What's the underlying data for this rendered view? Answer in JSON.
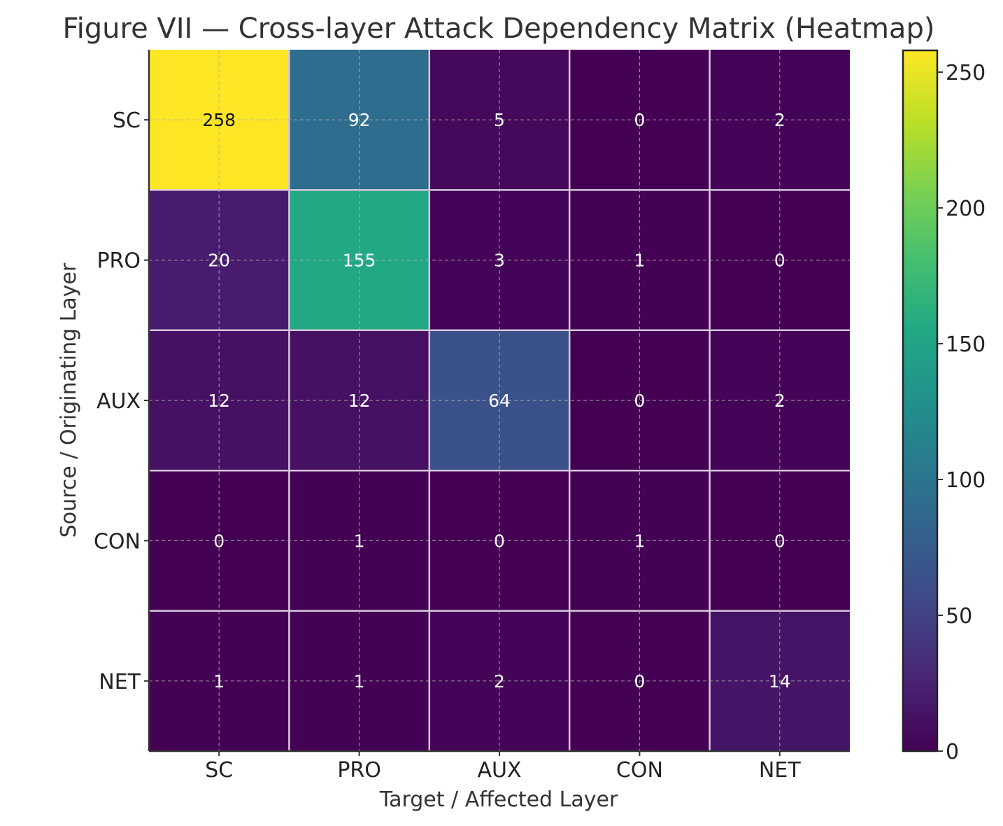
{
  "chart_data": {
    "type": "heatmap",
    "title": "Figure VII — Cross-layer Attack Dependency Matrix (Heatmap)",
    "xlabel": "Target / Affected Layer",
    "ylabel": "Source / Originating Layer",
    "x_categories": [
      "SC",
      "PRO",
      "AUX",
      "CON",
      "NET"
    ],
    "y_categories": [
      "SC",
      "PRO",
      "AUX",
      "CON",
      "NET"
    ],
    "values": [
      [
        258,
        92,
        5,
        0,
        2
      ],
      [
        20,
        155,
        3,
        1,
        0
      ],
      [
        12,
        12,
        64,
        0,
        2
      ],
      [
        0,
        1,
        0,
        1,
        0
      ],
      [
        1,
        1,
        2,
        0,
        14
      ]
    ],
    "colormap": "viridis",
    "colorbar": {
      "min": 0,
      "max": 258,
      "ticks": [
        0,
        50,
        100,
        150,
        200,
        250
      ]
    },
    "grid": true
  }
}
